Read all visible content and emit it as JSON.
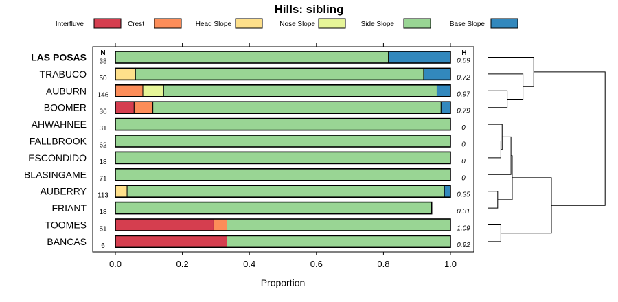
{
  "chart_data": {
    "type": "bar",
    "subtype": "stacked-horizontal-proportion",
    "title": "Hills: sibling",
    "xlabel": "Proportion",
    "xlim": [
      0,
      1
    ],
    "xticks": [
      "0.0",
      "0.2",
      "0.4",
      "0.6",
      "0.8",
      "1.0"
    ],
    "n_header": "N",
    "h_header": "H",
    "legend": [
      {
        "name": "Interfluve",
        "color": "#d53e4f"
      },
      {
        "name": "Crest",
        "color": "#fc8d59"
      },
      {
        "name": "Head Slope",
        "color": "#fee08b"
      },
      {
        "name": "Nose Slope",
        "color": "#e6f598"
      },
      {
        "name": "Side Slope",
        "color": "#99d594"
      },
      {
        "name": "Base Slope",
        "color": "#3288bd"
      }
    ],
    "rows": [
      {
        "name": "LAS POSAS",
        "bold": true,
        "n": "38",
        "h": "0.69",
        "values": [
          0,
          0,
          0,
          0,
          0.815,
          0.185
        ]
      },
      {
        "name": "TRABUCO",
        "bold": false,
        "n": "50",
        "h": "0.72",
        "values": [
          0,
          0,
          0.06,
          0,
          0.86,
          0.08
        ]
      },
      {
        "name": "AUBURN",
        "bold": false,
        "n": "146",
        "h": "0.97",
        "values": [
          0,
          0.082,
          0,
          0.062,
          0.816,
          0.04
        ]
      },
      {
        "name": "BOOMER",
        "bold": false,
        "n": "36",
        "h": "0.79",
        "values": [
          0.056,
          0.056,
          0,
          0,
          0.86,
          0.028
        ]
      },
      {
        "name": "AHWAHNEE",
        "bold": false,
        "n": "31",
        "h": "0",
        "values": [
          0,
          0,
          0,
          0,
          1.0,
          0
        ]
      },
      {
        "name": "FALLBROOK",
        "bold": false,
        "n": "62",
        "h": "0",
        "values": [
          0,
          0,
          0,
          0,
          1.0,
          0
        ]
      },
      {
        "name": "ESCONDIDO",
        "bold": false,
        "n": "18",
        "h": "0",
        "values": [
          0,
          0,
          0,
          0,
          1.0,
          0
        ]
      },
      {
        "name": "BLASINGAME",
        "bold": false,
        "n": "71",
        "h": "0",
        "values": [
          0,
          0,
          0,
          0,
          1.0,
          0
        ]
      },
      {
        "name": "AUBERRY",
        "bold": false,
        "n": "113",
        "h": "0.35",
        "values": [
          0,
          0,
          0.035,
          0,
          0.947,
          0.018
        ]
      },
      {
        "name": "FRIANT",
        "bold": false,
        "n": "18",
        "h": "0.31",
        "values": [
          0,
          0,
          0,
          0,
          0.944,
          0
        ]
      },
      {
        "name": "TOOMES",
        "bold": false,
        "n": "51",
        "h": "1.09",
        "values": [
          0.294,
          0.039,
          0,
          0,
          0.667,
          0
        ]
      },
      {
        "name": "BANCAS",
        "bold": false,
        "n": "6",
        "h": "0.92",
        "values": [
          0.333,
          0,
          0,
          0,
          0.667,
          0
        ]
      }
    ],
    "dendrogram": {
      "leaf_order": [
        "LAS POSAS",
        "TRABUCO",
        "AUBURN",
        "BOOMER",
        "AHWAHNEE",
        "FALLBROOK",
        "ESCONDIDO",
        "BLASINGAME",
        "AUBERRY",
        "FRIANT",
        "TOOMES",
        "BANCAS"
      ],
      "merges": [
        [
          2,
          3,
          0.3
        ],
        [
          1,
          "m0",
          0.55
        ],
        [
          0,
          "m1",
          0.72
        ],
        [
          5,
          6,
          0.2
        ],
        [
          4,
          "m3",
          0.22
        ],
        [
          7,
          "m4",
          0.36
        ],
        [
          8,
          9,
          0.15
        ],
        [
          "m5",
          "m6",
          0.38
        ],
        [
          10,
          11,
          0.2
        ],
        [
          "m7",
          "m8",
          1.0
        ],
        [
          "m2",
          "m9",
          1.85
        ]
      ]
    }
  }
}
